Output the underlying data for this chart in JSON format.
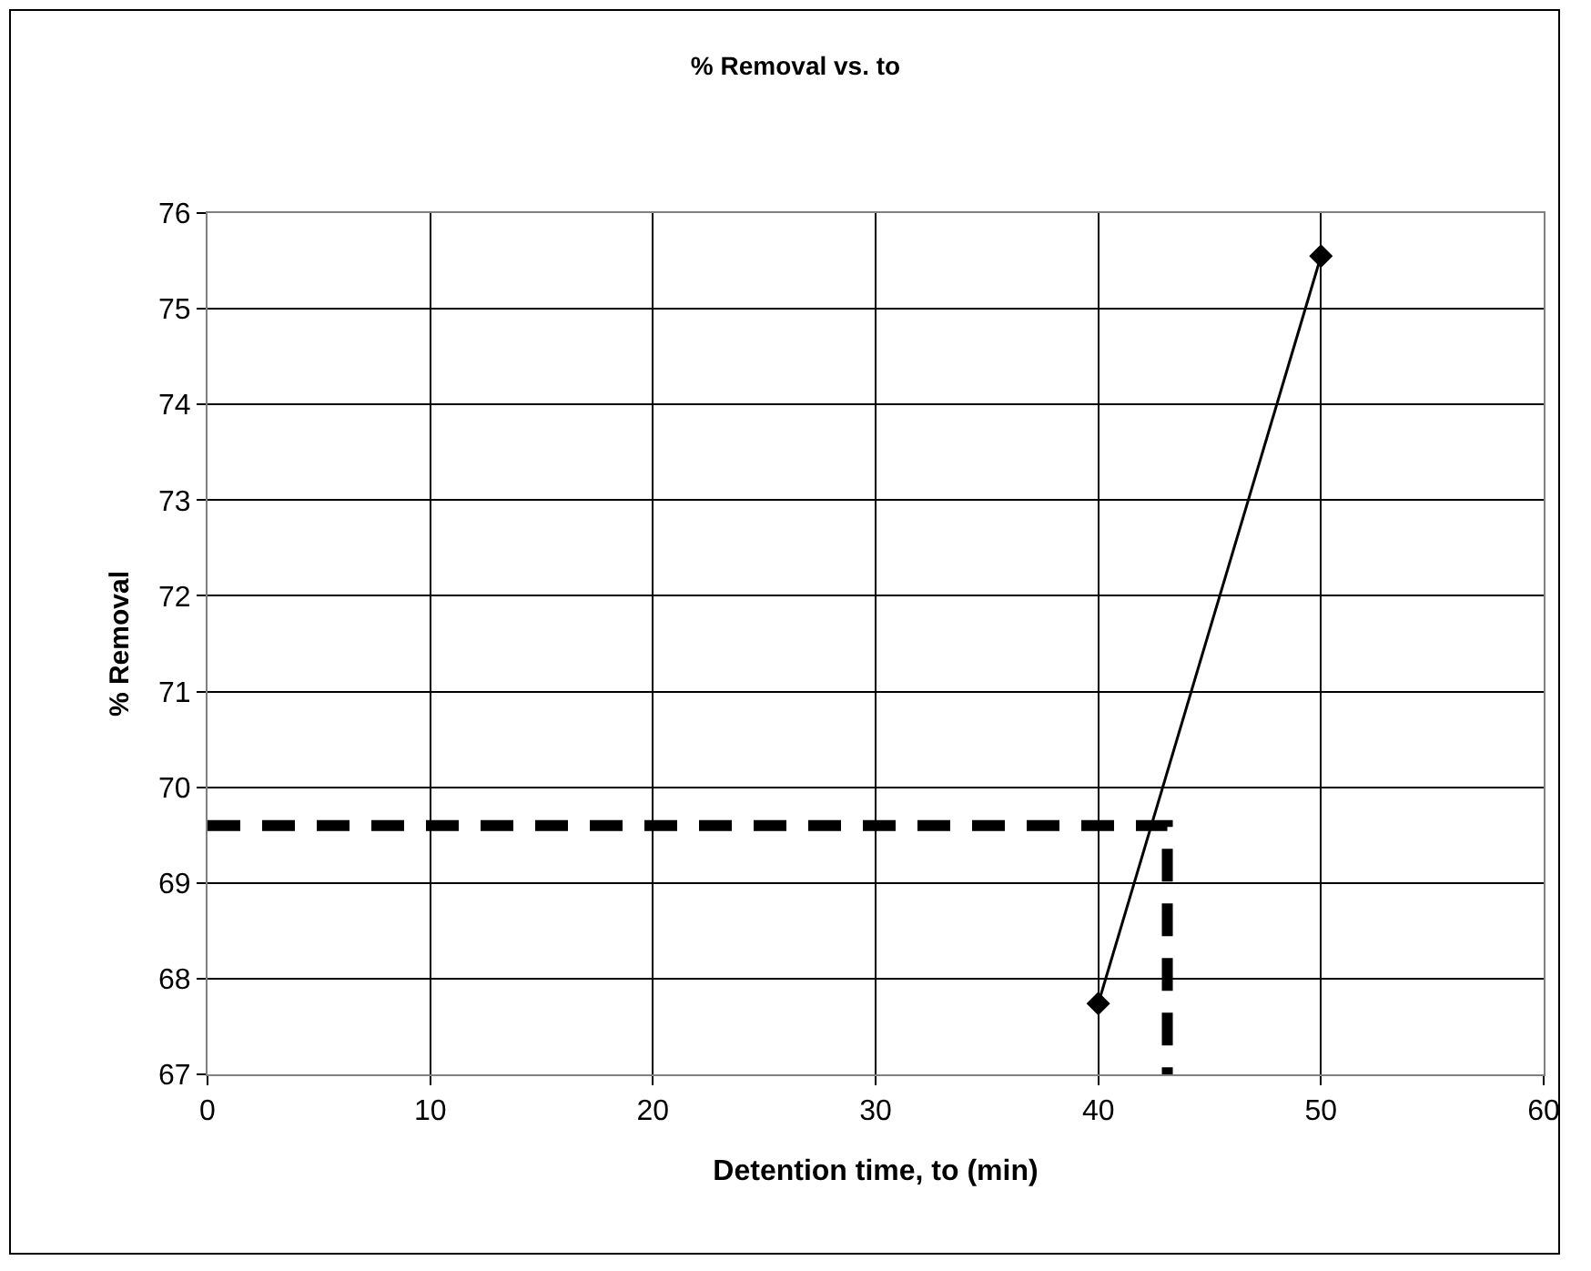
{
  "chart_data": {
    "type": "line",
    "title": "% Removal vs. to",
    "xlabel": "Detention time, to (min)",
    "ylabel": "% Removal",
    "xlim": [
      0,
      60
    ],
    "xticks": [
      0,
      10,
      20,
      30,
      40,
      50,
      60
    ],
    "ylim": [
      67,
      76
    ],
    "yticks": [
      67,
      68,
      69,
      70,
      71,
      72,
      73,
      74,
      75,
      76
    ],
    "grid": true,
    "series": [
      {
        "color": "#000000",
        "x": [
          40,
          50
        ],
        "values": [
          67.74,
          75.55
        ],
        "marker": "diamond",
        "line_style": "solid"
      },
      {
        "color": "#000000",
        "x": [
          0,
          43.1,
          43.1
        ],
        "values": [
          69.6,
          69.6,
          67
        ],
        "marker": "none",
        "line_style": "dashed"
      }
    ]
  }
}
